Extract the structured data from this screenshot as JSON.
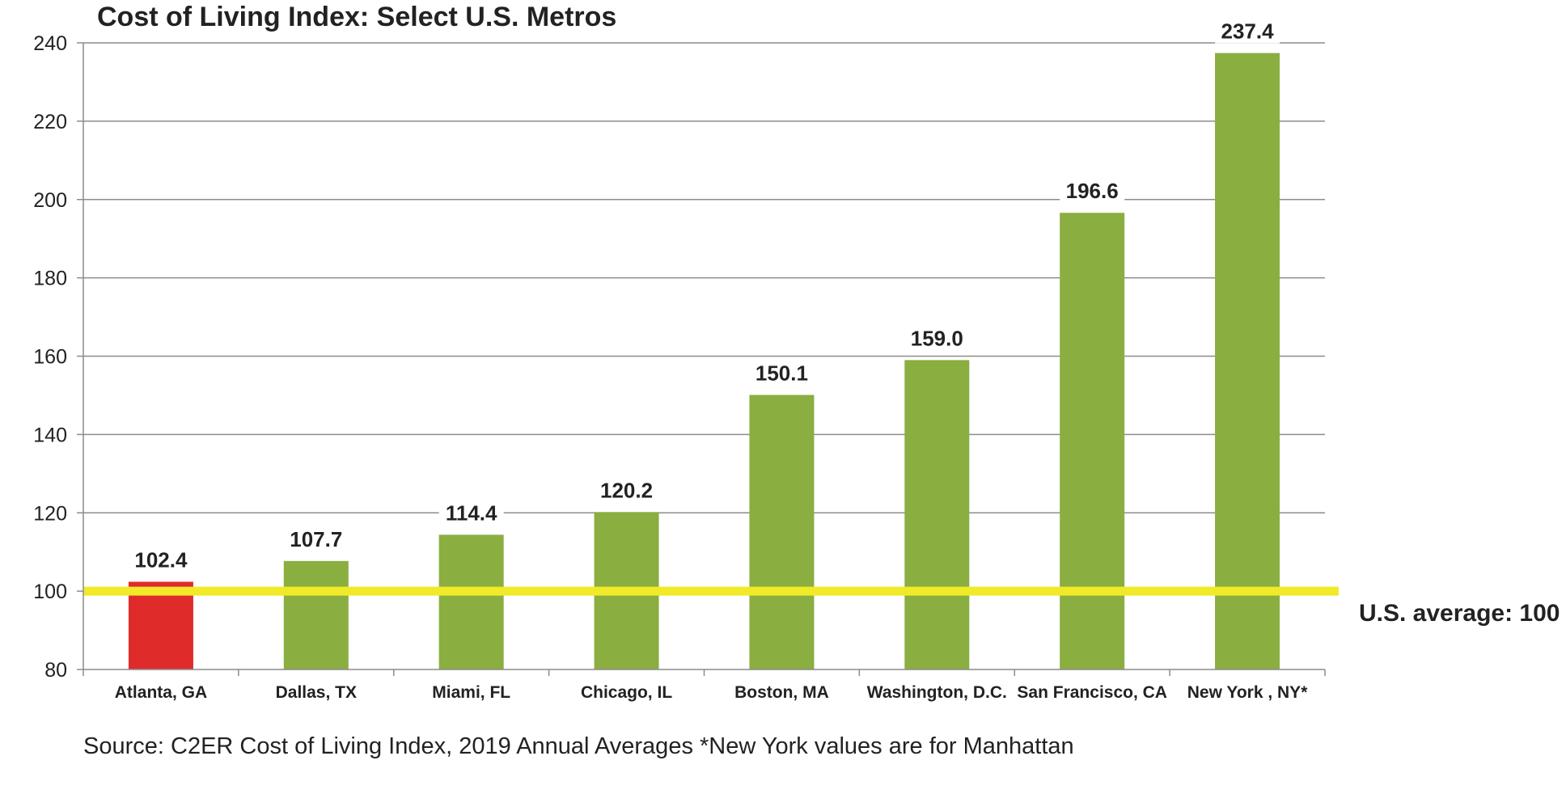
{
  "chart_data": {
    "type": "bar",
    "title": "Cost of Living Index:  Select U.S. Metros",
    "categories": [
      "Atlanta, GA",
      "Dallas, TX",
      "Miami, FL",
      "Chicago, IL",
      "Boston, MA",
      "Washington, D.C.",
      "San Francisco, CA",
      "New York , NY*"
    ],
    "values": [
      102.4,
      107.7,
      114.4,
      120.2,
      150.1,
      159.0,
      196.6,
      237.4
    ],
    "value_labels": [
      "102.4",
      "107.7",
      "114.4",
      "120.2",
      "150.1",
      "159.0",
      "196.6",
      "237.4"
    ],
    "bar_colors": [
      "#e02b2b",
      "#8aae40",
      "#8aae40",
      "#8aae40",
      "#8aae40",
      "#8aae40",
      "#8aae40",
      "#8aae40"
    ],
    "ylim": [
      80,
      240
    ],
    "yticks": [
      80,
      100,
      120,
      140,
      160,
      180,
      200,
      220,
      240
    ],
    "grid": true,
    "reference_line": {
      "value": 100,
      "label": "U.S. average: 100",
      "color": "#f0ea28"
    },
    "xlabel": "",
    "ylabel": ""
  },
  "source_note": "Source: C2ER Cost of Living Index, 2019 Annual Averages *New York values are for Manhattan",
  "colors": {
    "grid": "#8c8c8c",
    "axis": "#8c8c8c",
    "text": "#222222"
  }
}
